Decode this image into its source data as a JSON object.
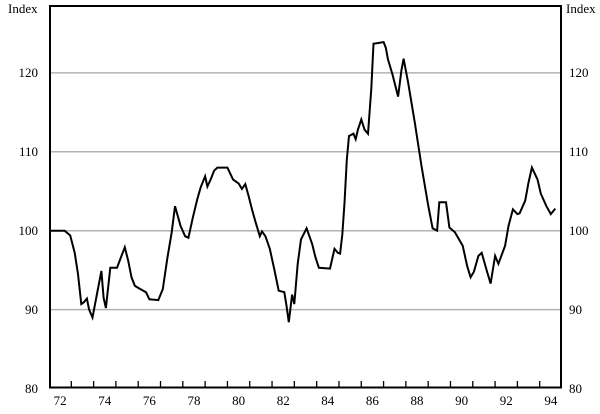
{
  "figure": {
    "left_axis_title": "Index",
    "right_axis_title": "Index"
  },
  "chart_data": {
    "type": "line",
    "title": "",
    "ylabel_left": "Index",
    "ylabel_right": "Index",
    "xlim": [
      72,
      95
    ],
    "ylim": [
      80,
      128.5
    ],
    "y_tick_labels": [
      80,
      90,
      100,
      110,
      120
    ],
    "gridlines_at": [
      90,
      100,
      110,
      120
    ],
    "x_tick_labels": [
      72,
      74,
      76,
      78,
      80,
      82,
      84,
      86,
      88,
      90,
      92,
      94
    ],
    "x_minor_tick_years": [
      73,
      74,
      75,
      76,
      77,
      78,
      79,
      80,
      81,
      82,
      83,
      84,
      85,
      86,
      87,
      88,
      89,
      90,
      91,
      92,
      93,
      94
    ],
    "grid_on": true,
    "grid_color": "#b3b3b3",
    "frame_color": "#000000",
    "line_color": "#000000",
    "legend": "none",
    "series": [
      {
        "name": "Index",
        "points": [
          [
            72.0,
            100
          ],
          [
            72.7,
            100
          ],
          [
            72.95,
            99.4
          ],
          [
            73.15,
            97.2
          ],
          [
            73.3,
            94.5
          ],
          [
            73.45,
            90.7
          ],
          [
            73.55,
            90.9
          ],
          [
            73.7,
            91.4
          ],
          [
            73.8,
            90.0
          ],
          [
            73.95,
            89.0
          ],
          [
            74.15,
            92.0
          ],
          [
            74.35,
            94.9
          ],
          [
            74.45,
            91.5
          ],
          [
            74.55,
            90.2
          ],
          [
            74.75,
            95.3
          ],
          [
            75.05,
            95.3
          ],
          [
            75.25,
            96.8
          ],
          [
            75.4,
            97.9
          ],
          [
            75.55,
            96.2
          ],
          [
            75.7,
            94.1
          ],
          [
            75.85,
            93.0
          ],
          [
            76.1,
            92.6
          ],
          [
            76.35,
            92.2
          ],
          [
            76.5,
            91.3
          ],
          [
            76.9,
            91.2
          ],
          [
            77.1,
            92.6
          ],
          [
            77.3,
            96.4
          ],
          [
            77.5,
            99.8
          ],
          [
            77.65,
            103.1
          ],
          [
            77.9,
            100.6
          ],
          [
            78.1,
            99.3
          ],
          [
            78.25,
            99.1
          ],
          [
            78.45,
            101.7
          ],
          [
            78.65,
            104.0
          ],
          [
            78.8,
            105.5
          ],
          [
            79.0,
            106.9
          ],
          [
            79.1,
            105.6
          ],
          [
            79.25,
            106.5
          ],
          [
            79.4,
            107.6
          ],
          [
            79.55,
            108.0
          ],
          [
            80.0,
            108.0
          ],
          [
            80.25,
            106.5
          ],
          [
            80.5,
            106.0
          ],
          [
            80.65,
            105.3
          ],
          [
            80.8,
            105.9
          ],
          [
            80.95,
            104.4
          ],
          [
            81.1,
            102.7
          ],
          [
            81.25,
            101.2
          ],
          [
            81.45,
            99.3
          ],
          [
            81.55,
            99.9
          ],
          [
            81.7,
            99.3
          ],
          [
            81.9,
            97.7
          ],
          [
            82.1,
            95.1
          ],
          [
            82.3,
            92.4
          ],
          [
            82.55,
            92.2
          ],
          [
            82.65,
            90.5
          ],
          [
            82.75,
            88.4
          ],
          [
            82.9,
            91.9
          ],
          [
            83.0,
            90.7
          ],
          [
            83.15,
            95.8
          ],
          [
            83.3,
            98.9
          ],
          [
            83.55,
            100.3
          ],
          [
            83.8,
            98.3
          ],
          [
            83.95,
            96.6
          ],
          [
            84.1,
            95.3
          ],
          [
            84.6,
            95.2
          ],
          [
            84.8,
            97.7
          ],
          [
            84.95,
            97.2
          ],
          [
            85.05,
            97.1
          ],
          [
            85.15,
            99.5
          ],
          [
            85.25,
            103.5
          ],
          [
            85.35,
            109.0
          ],
          [
            85.45,
            112.0
          ],
          [
            85.65,
            112.3
          ],
          [
            85.75,
            111.6
          ],
          [
            85.85,
            112.8
          ],
          [
            86.0,
            114.1
          ],
          [
            86.15,
            112.8
          ],
          [
            86.3,
            112.3
          ],
          [
            86.45,
            118.0
          ],
          [
            86.55,
            123.7
          ],
          [
            87.0,
            123.9
          ],
          [
            87.1,
            123.2
          ],
          [
            87.2,
            121.7
          ],
          [
            87.4,
            119.8
          ],
          [
            87.65,
            117.0
          ],
          [
            87.8,
            120.3
          ],
          [
            87.9,
            121.8
          ],
          [
            88.1,
            118.8
          ],
          [
            88.4,
            113.7
          ],
          [
            88.7,
            108.2
          ],
          [
            89.0,
            103.2
          ],
          [
            89.2,
            100.3
          ],
          [
            89.4,
            100.0
          ],
          [
            89.5,
            103.6
          ],
          [
            89.8,
            103.6
          ],
          [
            89.95,
            100.4
          ],
          [
            90.2,
            99.8
          ],
          [
            90.55,
            98.1
          ],
          [
            90.75,
            95.5
          ],
          [
            90.9,
            94.1
          ],
          [
            91.05,
            94.8
          ],
          [
            91.25,
            96.8
          ],
          [
            91.4,
            97.2
          ],
          [
            91.65,
            94.7
          ],
          [
            91.8,
            93.3
          ],
          [
            92.0,
            96.8
          ],
          [
            92.15,
            95.8
          ],
          [
            92.45,
            98.1
          ],
          [
            92.6,
            100.6
          ],
          [
            92.8,
            102.7
          ],
          [
            93.0,
            102.1
          ],
          [
            93.1,
            102.2
          ],
          [
            93.35,
            103.8
          ],
          [
            93.5,
            106.1
          ],
          [
            93.65,
            108.0
          ],
          [
            93.9,
            106.5
          ],
          [
            94.05,
            104.7
          ],
          [
            94.3,
            103.1
          ],
          [
            94.5,
            102.1
          ],
          [
            94.7,
            102.8
          ]
        ]
      }
    ]
  }
}
